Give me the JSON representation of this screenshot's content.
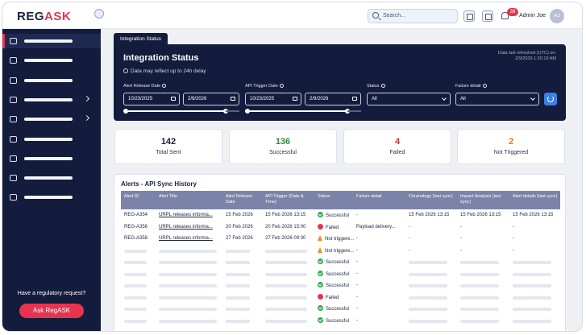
{
  "app": {
    "logo_main": "REG",
    "logo_accent": "ASK"
  },
  "header": {
    "search_placeholder": "Search...",
    "notif_count": "39",
    "user_name": "Admin Joe",
    "user_initials": "AJ"
  },
  "sidebar": {
    "items": [
      {
        "icon": "sync-icon",
        "chevron": false,
        "active": true
      },
      {
        "icon": "dashboard-icon",
        "chevron": false
      },
      {
        "icon": "chart-icon",
        "chevron": false
      },
      {
        "icon": "gauge-icon",
        "chevron": true
      },
      {
        "icon": "edit-icon",
        "chevron": true
      },
      {
        "icon": "report-icon",
        "chevron": false
      },
      {
        "icon": "document-icon",
        "chevron": false
      },
      {
        "icon": "calendar-icon",
        "chevron": false
      },
      {
        "icon": "database-icon",
        "chevron": false
      }
    ],
    "question": "Have a regulatory request?",
    "ask_button": "Ask RegASK"
  },
  "tab": "Integration Status",
  "panel": {
    "title": "Integration Status",
    "note": "Data may reflect up to 24h delay",
    "refresh_label": "Data last refreshed (UTC) on:",
    "refresh_value": "2/9/2026 1:20:19 AM",
    "filters": {
      "alert_release_label": "Alert Release Date",
      "alert_release_from": "10/23/2025",
      "alert_release_to": "2/9/2026",
      "api_trigger_label": "API Trigger Date",
      "api_trigger_from": "10/23/2025",
      "api_trigger_to": "2/9/2026",
      "status_label": "Status",
      "status_value": "All",
      "failure_label": "Failure detail",
      "failure_value": "All"
    }
  },
  "cards": [
    {
      "value": "142",
      "label": "Total Sent",
      "color": "#1a1f36"
    },
    {
      "value": "136",
      "label": "Successful",
      "color": "#2f8a3e"
    },
    {
      "value": "4",
      "label": "Failed",
      "color": "#d32f3c"
    },
    {
      "value": "2",
      "label": "Not Triggered",
      "color": "#e0762a"
    }
  ],
  "table": {
    "title": "Alerts - API Sync History",
    "headers": [
      "Alert ID",
      "Alert Title",
      "Alert Release Date",
      "API Trigger (Date & Time)",
      "Status",
      "Failure detail",
      "Chronology (last sync)",
      "Impact Analysis (last sync)",
      "Alert details (last sync)"
    ],
    "rows": [
      {
        "id": "REG-A354",
        "title": "URPL releases informa...",
        "release": "15 Feb 2026",
        "trigger": "15 Feb 2026 13:15",
        "status": "Successful",
        "status_kind": "ok",
        "failure": "-",
        "chron": "15 Feb 2026 13:15",
        "impact": "15 Feb 2026 13:15",
        "details": "15 Feb 2026 13:15"
      },
      {
        "id": "REG-A356",
        "title": "URPL releases informa...",
        "release": "20 Feb 2026",
        "trigger": "20 Feb 2026 15:00",
        "status": "Failed",
        "status_kind": "bad",
        "failure": "Payload delivery...",
        "chron": "-",
        "impact": "-",
        "details": "-"
      },
      {
        "id": "REG-A358",
        "title": "URPL releases informa...",
        "release": "27 Feb 2026",
        "trigger": "27 Feb 2026 09:30",
        "status": "Not triggere...",
        "status_kind": "warn",
        "failure": "-",
        "chron": "-",
        "impact": "-",
        "details": "-"
      }
    ],
    "skeleton_rows": [
      {
        "status": "Not triggere...",
        "status_kind": "warn",
        "failure": "-",
        "chron": "-",
        "impact": "-",
        "details": "-"
      },
      {
        "status": "Successful",
        "status_kind": "ok",
        "failure": "-"
      },
      {
        "status": "Successful",
        "status_kind": "ok",
        "failure": "-"
      },
      {
        "status": "Successful",
        "status_kind": "ok",
        "failure": "-"
      },
      {
        "status": "Failed",
        "status_kind": "bad",
        "failure": "-"
      },
      {
        "status": "Successful",
        "status_kind": "ok",
        "failure": "-"
      },
      {
        "status": "Successful",
        "status_kind": "ok",
        "failure": "-"
      }
    ]
  }
}
